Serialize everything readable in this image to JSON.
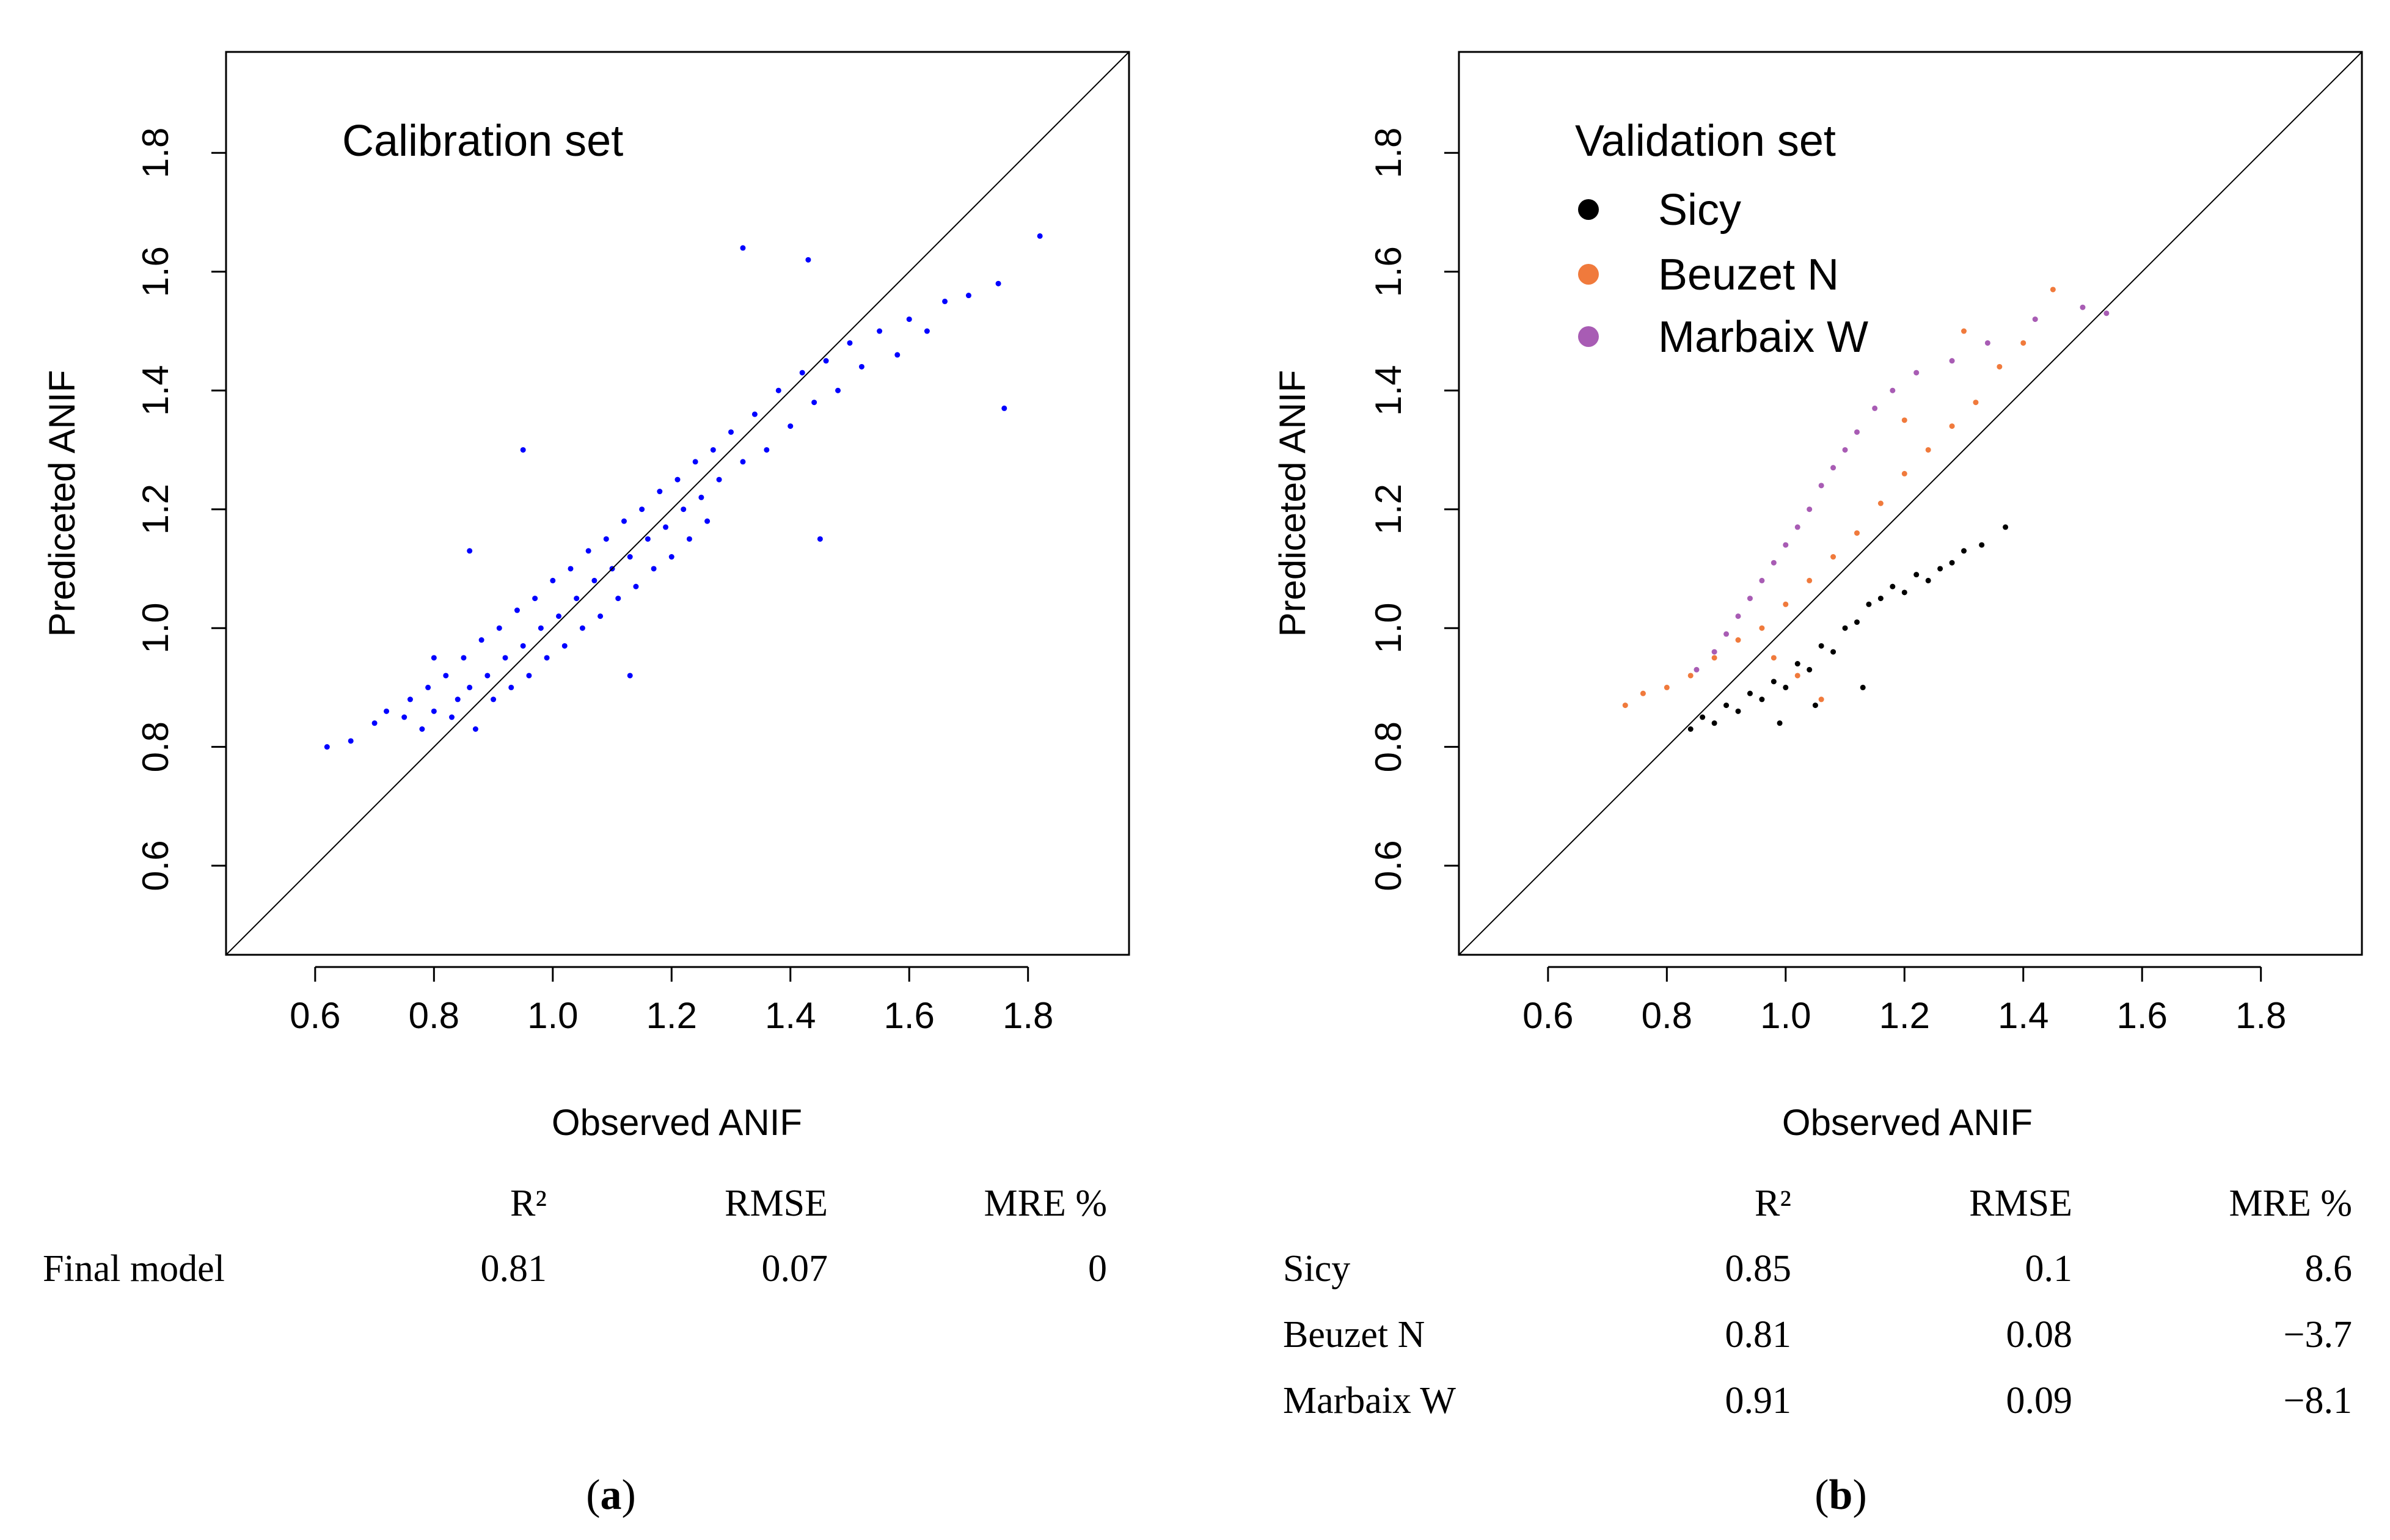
{
  "colors": {
    "calibration": "#0000ff",
    "sicy": "#000000",
    "beuzet": "#f07a3c",
    "marbaix": "#a85cb4"
  },
  "chart_data": [
    {
      "type": "scatter",
      "panel_label": "a",
      "title": "Calibration set",
      "xlabel": "Observed ANIF",
      "ylabel": "Prediceted ANIF",
      "xlim": [
        0.45,
        1.97
      ],
      "ylim": [
        0.45,
        1.97
      ],
      "xticks": [
        0.6,
        0.8,
        1.0,
        1.2,
        1.4,
        1.6,
        1.8
      ],
      "xtick_labels": [
        "0.6",
        "0.8",
        "1.0",
        "1.2",
        "1.4",
        "1.6",
        "1.8"
      ],
      "yticks": [
        0.6,
        0.8,
        1.0,
        1.2,
        1.4,
        1.6,
        1.8
      ],
      "ytick_labels": [
        "0.6",
        "0.8",
        "1.0",
        "1.2",
        "1.4",
        "1.6",
        "1.8"
      ],
      "reference_line": "1:1",
      "series": [
        {
          "color": "#0000ff",
          "points": [
            [
              0.62,
              0.8
            ],
            [
              0.66,
              0.81
            ],
            [
              0.7,
              0.84
            ],
            [
              0.72,
              0.86
            ],
            [
              0.75,
              0.85
            ],
            [
              0.76,
              0.88
            ],
            [
              0.78,
              0.83
            ],
            [
              0.79,
              0.9
            ],
            [
              0.8,
              0.86
            ],
            [
              0.82,
              0.92
            ],
            [
              0.83,
              0.85
            ],
            [
              0.84,
              0.88
            ],
            [
              0.85,
              0.95
            ],
            [
              0.86,
              0.9
            ],
            [
              0.87,
              0.83
            ],
            [
              0.88,
              0.98
            ],
            [
              0.89,
              0.92
            ],
            [
              0.9,
              0.88
            ],
            [
              0.91,
              1.0
            ],
            [
              0.92,
              0.95
            ],
            [
              0.93,
              0.9
            ],
            [
              0.94,
              1.03
            ],
            [
              0.95,
              0.97
            ],
            [
              0.96,
              0.92
            ],
            [
              0.97,
              1.05
            ],
            [
              0.98,
              1.0
            ],
            [
              0.99,
              0.95
            ],
            [
              1.0,
              1.08
            ],
            [
              1.01,
              1.02
            ],
            [
              1.02,
              0.97
            ],
            [
              1.03,
              1.1
            ],
            [
              1.04,
              1.05
            ],
            [
              1.05,
              1.0
            ],
            [
              1.06,
              1.13
            ],
            [
              1.07,
              1.08
            ],
            [
              1.08,
              1.02
            ],
            [
              1.09,
              1.15
            ],
            [
              1.1,
              1.1
            ],
            [
              1.11,
              1.05
            ],
            [
              1.12,
              1.18
            ],
            [
              1.13,
              1.12
            ],
            [
              1.14,
              1.07
            ],
            [
              1.15,
              1.2
            ],
            [
              1.16,
              1.15
            ],
            [
              1.17,
              1.1
            ],
            [
              1.18,
              1.23
            ],
            [
              1.19,
              1.17
            ],
            [
              1.2,
              1.12
            ],
            [
              1.21,
              1.25
            ],
            [
              1.22,
              1.2
            ],
            [
              1.23,
              1.15
            ],
            [
              1.24,
              1.28
            ],
            [
              1.25,
              1.22
            ],
            [
              1.26,
              1.18
            ],
            [
              1.27,
              1.3
            ],
            [
              1.28,
              1.25
            ],
            [
              1.3,
              1.33
            ],
            [
              1.32,
              1.28
            ],
            [
              1.34,
              1.36
            ],
            [
              1.36,
              1.3
            ],
            [
              1.38,
              1.4
            ],
            [
              1.4,
              1.34
            ],
            [
              1.42,
              1.43
            ],
            [
              1.44,
              1.38
            ],
            [
              1.46,
              1.45
            ],
            [
              1.48,
              1.4
            ],
            [
              1.5,
              1.48
            ],
            [
              1.52,
              1.44
            ],
            [
              1.55,
              1.5
            ],
            [
              1.58,
              1.46
            ],
            [
              1.6,
              1.52
            ],
            [
              1.63,
              1.5
            ],
            [
              1.66,
              1.55
            ],
            [
              1.7,
              1.56
            ],
            [
              1.75,
              1.58
            ],
            [
              1.82,
              1.66
            ],
            [
              1.76,
              1.37
            ],
            [
              1.32,
              1.64
            ],
            [
              1.43,
              1.62
            ],
            [
              1.45,
              1.15
            ],
            [
              1.13,
              0.92
            ],
            [
              0.86,
              1.13
            ],
            [
              0.95,
              1.3
            ],
            [
              0.8,
              0.95
            ]
          ]
        }
      ],
      "stats_table": {
        "columns": [
          "",
          "R²",
          "RMSE",
          "MRE %"
        ],
        "rows": [
          [
            "Final model",
            "0.81",
            "0.07",
            "0"
          ]
        ]
      }
    },
    {
      "type": "scatter",
      "panel_label": "b",
      "title": "Validation set",
      "xlabel": "Observed ANIF",
      "ylabel": "Prediceted ANIF",
      "xlim": [
        0.45,
        1.97
      ],
      "ylim": [
        0.45,
        1.97
      ],
      "xticks": [
        0.6,
        0.8,
        1.0,
        1.2,
        1.4,
        1.6,
        1.8
      ],
      "xtick_labels": [
        "0.6",
        "0.8",
        "1.0",
        "1.2",
        "1.4",
        "1.6",
        "1.8"
      ],
      "yticks": [
        0.6,
        0.8,
        1.0,
        1.2,
        1.4,
        1.6,
        1.8
      ],
      "ytick_labels": [
        "0.6",
        "0.8",
        "1.0",
        "1.2",
        "1.4",
        "1.6",
        "1.8"
      ],
      "reference_line": "1:1",
      "legend_position": "top-left",
      "series": [
        {
          "name": "Sicy",
          "color": "#000000",
          "points": [
            [
              0.84,
              0.83
            ],
            [
              0.86,
              0.85
            ],
            [
              0.88,
              0.84
            ],
            [
              0.9,
              0.87
            ],
            [
              0.92,
              0.86
            ],
            [
              0.94,
              0.89
            ],
            [
              0.96,
              0.88
            ],
            [
              0.98,
              0.91
            ],
            [
              1.0,
              0.9
            ],
            [
              1.02,
              0.94
            ],
            [
              1.04,
              0.93
            ],
            [
              1.06,
              0.97
            ],
            [
              1.08,
              0.96
            ],
            [
              1.1,
              1.0
            ],
            [
              1.12,
              1.01
            ],
            [
              1.14,
              1.04
            ],
            [
              1.16,
              1.05
            ],
            [
              1.18,
              1.07
            ],
            [
              1.2,
              1.06
            ],
            [
              1.22,
              1.09
            ],
            [
              1.24,
              1.08
            ],
            [
              1.26,
              1.1
            ],
            [
              1.28,
              1.11
            ],
            [
              1.3,
              1.13
            ],
            [
              1.33,
              1.14
            ],
            [
              1.37,
              1.17
            ],
            [
              1.13,
              0.9
            ],
            [
              1.05,
              0.87
            ],
            [
              0.99,
              0.84
            ]
          ]
        },
        {
          "name": "Beuzet N",
          "color": "#f07a3c",
          "points": [
            [
              0.73,
              0.87
            ],
            [
              0.76,
              0.89
            ],
            [
              0.8,
              0.9
            ],
            [
              0.84,
              0.92
            ],
            [
              0.88,
              0.95
            ],
            [
              0.92,
              0.98
            ],
            [
              0.96,
              1.0
            ],
            [
              1.0,
              1.04
            ],
            [
              1.04,
              1.08
            ],
            [
              1.08,
              1.12
            ],
            [
              1.12,
              1.16
            ],
            [
              1.16,
              1.21
            ],
            [
              1.2,
              1.26
            ],
            [
              1.24,
              1.3
            ],
            [
              1.28,
              1.34
            ],
            [
              1.32,
              1.38
            ],
            [
              1.36,
              1.44
            ],
            [
              1.4,
              1.48
            ],
            [
              1.45,
              1.57
            ],
            [
              1.3,
              1.5
            ],
            [
              1.2,
              1.35
            ],
            [
              1.02,
              0.92
            ],
            [
              1.06,
              0.88
            ],
            [
              0.98,
              0.95
            ]
          ]
        },
        {
          "name": "Marbaix W",
          "color": "#a85cb4",
          "points": [
            [
              0.85,
              0.93
            ],
            [
              0.88,
              0.96
            ],
            [
              0.9,
              0.99
            ],
            [
              0.92,
              1.02
            ],
            [
              0.94,
              1.05
            ],
            [
              0.96,
              1.08
            ],
            [
              0.98,
              1.11
            ],
            [
              1.0,
              1.14
            ],
            [
              1.02,
              1.17
            ],
            [
              1.04,
              1.2
            ],
            [
              1.06,
              1.24
            ],
            [
              1.08,
              1.27
            ],
            [
              1.1,
              1.3
            ],
            [
              1.12,
              1.33
            ],
            [
              1.15,
              1.37
            ],
            [
              1.18,
              1.4
            ],
            [
              1.22,
              1.43
            ],
            [
              1.28,
              1.45
            ],
            [
              1.34,
              1.48
            ],
            [
              1.42,
              1.52
            ],
            [
              1.5,
              1.54
            ],
            [
              1.54,
              1.53
            ]
          ]
        }
      ],
      "stats_table": {
        "columns": [
          "",
          "R²",
          "RMSE",
          "MRE %"
        ],
        "rows": [
          [
            "Sicy",
            "0.85",
            "0.1",
            "8.6"
          ],
          [
            "Beuzet N",
            "0.81",
            "0.08",
            "−3.7"
          ],
          [
            "Marbaix W",
            "0.91",
            "0.09",
            "−8.1"
          ]
        ]
      }
    }
  ]
}
